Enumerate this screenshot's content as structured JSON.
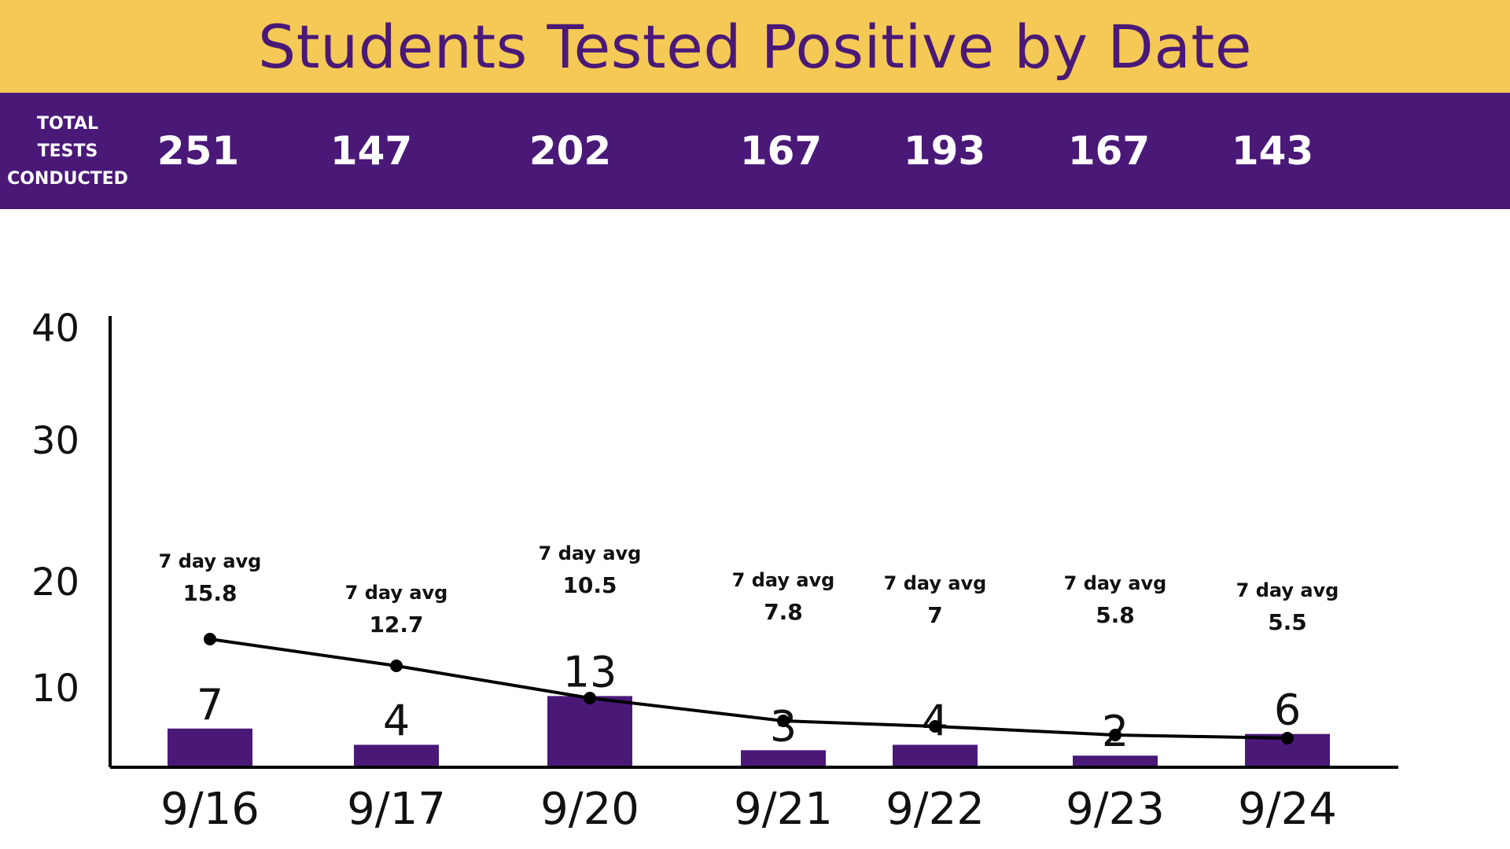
{
  "colors": {
    "band_yellow": "#F5C955",
    "band_purple": "#4A1978",
    "bar": "#4A1978",
    "line": "#000000"
  },
  "header": {
    "title": "Students Tested Positive by Date"
  },
  "tests": {
    "label_lines": [
      "TOTAL",
      "TESTS",
      "CONDUCTED"
    ],
    "values": [
      "251",
      "147",
      "202",
      "167",
      "193",
      "167",
      "143"
    ]
  },
  "chart_data": {
    "type": "bar",
    "title": "Students Tested Positive by Date",
    "categories": [
      "9/16",
      "9/17",
      "9/20",
      "9/21",
      "9/22",
      "9/23",
      "9/24"
    ],
    "series": [
      {
        "type": "bar",
        "values": [
          7,
          4,
          13,
          3,
          4,
          2,
          6
        ]
      },
      {
        "type": "line",
        "label": "7 day avg",
        "values": [
          15.8,
          12.7,
          10.5,
          7.8,
          7,
          5.8,
          5.5
        ]
      }
    ],
    "bar_labels": [
      "7",
      "4",
      "13",
      "3",
      "4",
      "2",
      "6"
    ],
    "avg_labels": [
      "15.8",
      "12.7",
      "10.5",
      "7.8",
      "7",
      "5.8",
      "5.5"
    ],
    "avg_title": "7 day avg",
    "yticks": [
      "10",
      "20",
      "30",
      "40"
    ],
    "ylim": [
      0,
      40
    ],
    "grid": false,
    "legend": "none"
  }
}
